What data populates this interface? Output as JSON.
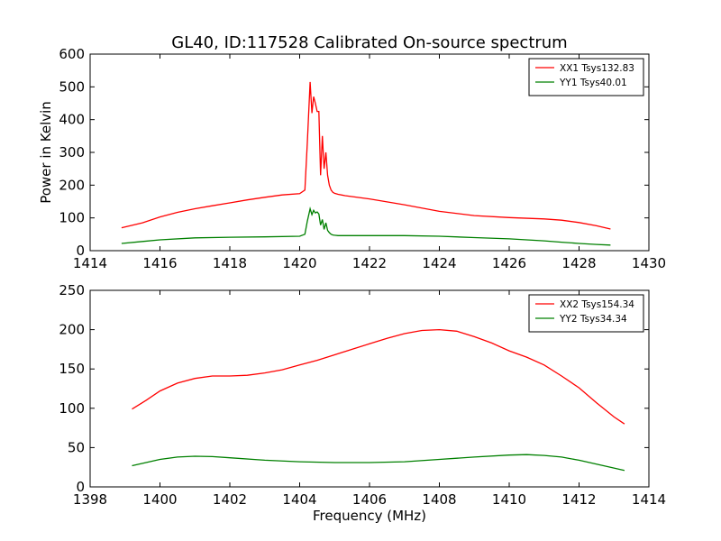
{
  "title": "GL40, ID:117528 Calibrated On-source spectrum",
  "chart_data": [
    {
      "type": "line",
      "title": "GL40, ID:117528 Calibrated On-source spectrum",
      "xlabel": "",
      "ylabel": "Power in Kelvin",
      "xlim": [
        1414,
        1430
      ],
      "ylim": [
        0,
        600
      ],
      "xticks": [
        "1414",
        "1416",
        "1418",
        "1420",
        "1422",
        "1424",
        "1426",
        "1428",
        "1430"
      ],
      "yticks": [
        "0",
        "100",
        "200",
        "300",
        "400",
        "500",
        "600"
      ],
      "grid": false,
      "legend_position": "top-right",
      "series": [
        {
          "name": "XX1 Tsys132.83",
          "color": "#ff0000",
          "x": [
            1414.9,
            1415.5,
            1416.0,
            1416.5,
            1417.0,
            1417.5,
            1418.0,
            1418.5,
            1419.0,
            1419.5,
            1420.0,
            1420.15,
            1420.22,
            1420.3,
            1420.35,
            1420.4,
            1420.45,
            1420.5,
            1420.55,
            1420.6,
            1420.65,
            1420.7,
            1420.75,
            1420.8,
            1420.85,
            1420.9,
            1420.95,
            1421.0,
            1421.1,
            1421.3,
            1422.0,
            1423.0,
            1424.0,
            1425.0,
            1426.0,
            1427.0,
            1427.5,
            1428.0,
            1428.5,
            1428.9
          ],
          "y": [
            70,
            85,
            103,
            117,
            128,
            137,
            146,
            155,
            163,
            170,
            174,
            185,
            330,
            515,
            420,
            470,
            450,
            425,
            425,
            230,
            350,
            250,
            300,
            230,
            200,
            185,
            178,
            175,
            172,
            168,
            158,
            140,
            120,
            107,
            101,
            97,
            93,
            86,
            76,
            66
          ]
        },
        {
          "name": "YY1 Tsys40.01",
          "color": "#008000",
          "x": [
            1414.9,
            1415.5,
            1416.0,
            1417.0,
            1418.0,
            1419.0,
            1420.0,
            1420.15,
            1420.22,
            1420.3,
            1420.35,
            1420.4,
            1420.45,
            1420.5,
            1420.55,
            1420.6,
            1420.65,
            1420.7,
            1420.75,
            1420.8,
            1420.85,
            1420.9,
            1420.95,
            1421.0,
            1421.1,
            1422.0,
            1423.0,
            1424.0,
            1425.0,
            1426.0,
            1427.0,
            1427.5,
            1428.0,
            1428.5,
            1428.9
          ],
          "y": [
            22,
            28,
            33,
            39,
            41,
            42,
            44,
            50,
            90,
            128,
            110,
            123,
            115,
            118,
            112,
            78,
            95,
            65,
            85,
            62,
            55,
            50,
            48,
            47,
            46,
            46,
            46,
            44,
            40,
            36,
            30,
            26,
            22,
            19,
            17
          ]
        }
      ]
    },
    {
      "type": "line",
      "title": "",
      "xlabel": "Frequency (MHz)",
      "ylabel": "",
      "xlim": [
        1398,
        1414
      ],
      "ylim": [
        0,
        250
      ],
      "xticks": [
        "1398",
        "1400",
        "1402",
        "1404",
        "1406",
        "1408",
        "1410",
        "1412",
        "1414"
      ],
      "yticks": [
        "0",
        "50",
        "100",
        "150",
        "200",
        "250"
      ],
      "grid": false,
      "legend_position": "top-right",
      "series": [
        {
          "name": "XX2 Tsys154.34",
          "color": "#ff0000",
          "x": [
            1399.2,
            1399.6,
            1400.0,
            1400.5,
            1401.0,
            1401.5,
            1402.0,
            1402.5,
            1403.0,
            1403.5,
            1404.0,
            1404.5,
            1405.0,
            1405.5,
            1406.0,
            1406.5,
            1407.0,
            1407.5,
            1408.0,
            1408.5,
            1409.0,
            1409.5,
            1410.0,
            1410.5,
            1411.0,
            1411.5,
            1412.0,
            1412.5,
            1413.0,
            1413.3
          ],
          "y": [
            99,
            110,
            122,
            132,
            138,
            141,
            141,
            142,
            145,
            149,
            155,
            161,
            168,
            175,
            182,
            189,
            195,
            199,
            200,
            198,
            191,
            183,
            173,
            165,
            155,
            141,
            126,
            107,
            89,
            80
          ]
        },
        {
          "name": "YY2 Tsys34.34",
          "color": "#008000",
          "x": [
            1399.2,
            1399.6,
            1400.0,
            1400.5,
            1401.0,
            1401.5,
            1402.0,
            1403.0,
            1404.0,
            1405.0,
            1406.0,
            1407.0,
            1408.0,
            1409.0,
            1410.0,
            1410.5,
            1411.0,
            1411.5,
            1412.0,
            1412.5,
            1413.0,
            1413.3
          ],
          "y": [
            27,
            31,
            35,
            38,
            39,
            38.5,
            37,
            34,
            32,
            31,
            31,
            32,
            35,
            38,
            40.5,
            41,
            40,
            38,
            34,
            29,
            24,
            21
          ]
        }
      ]
    }
  ]
}
